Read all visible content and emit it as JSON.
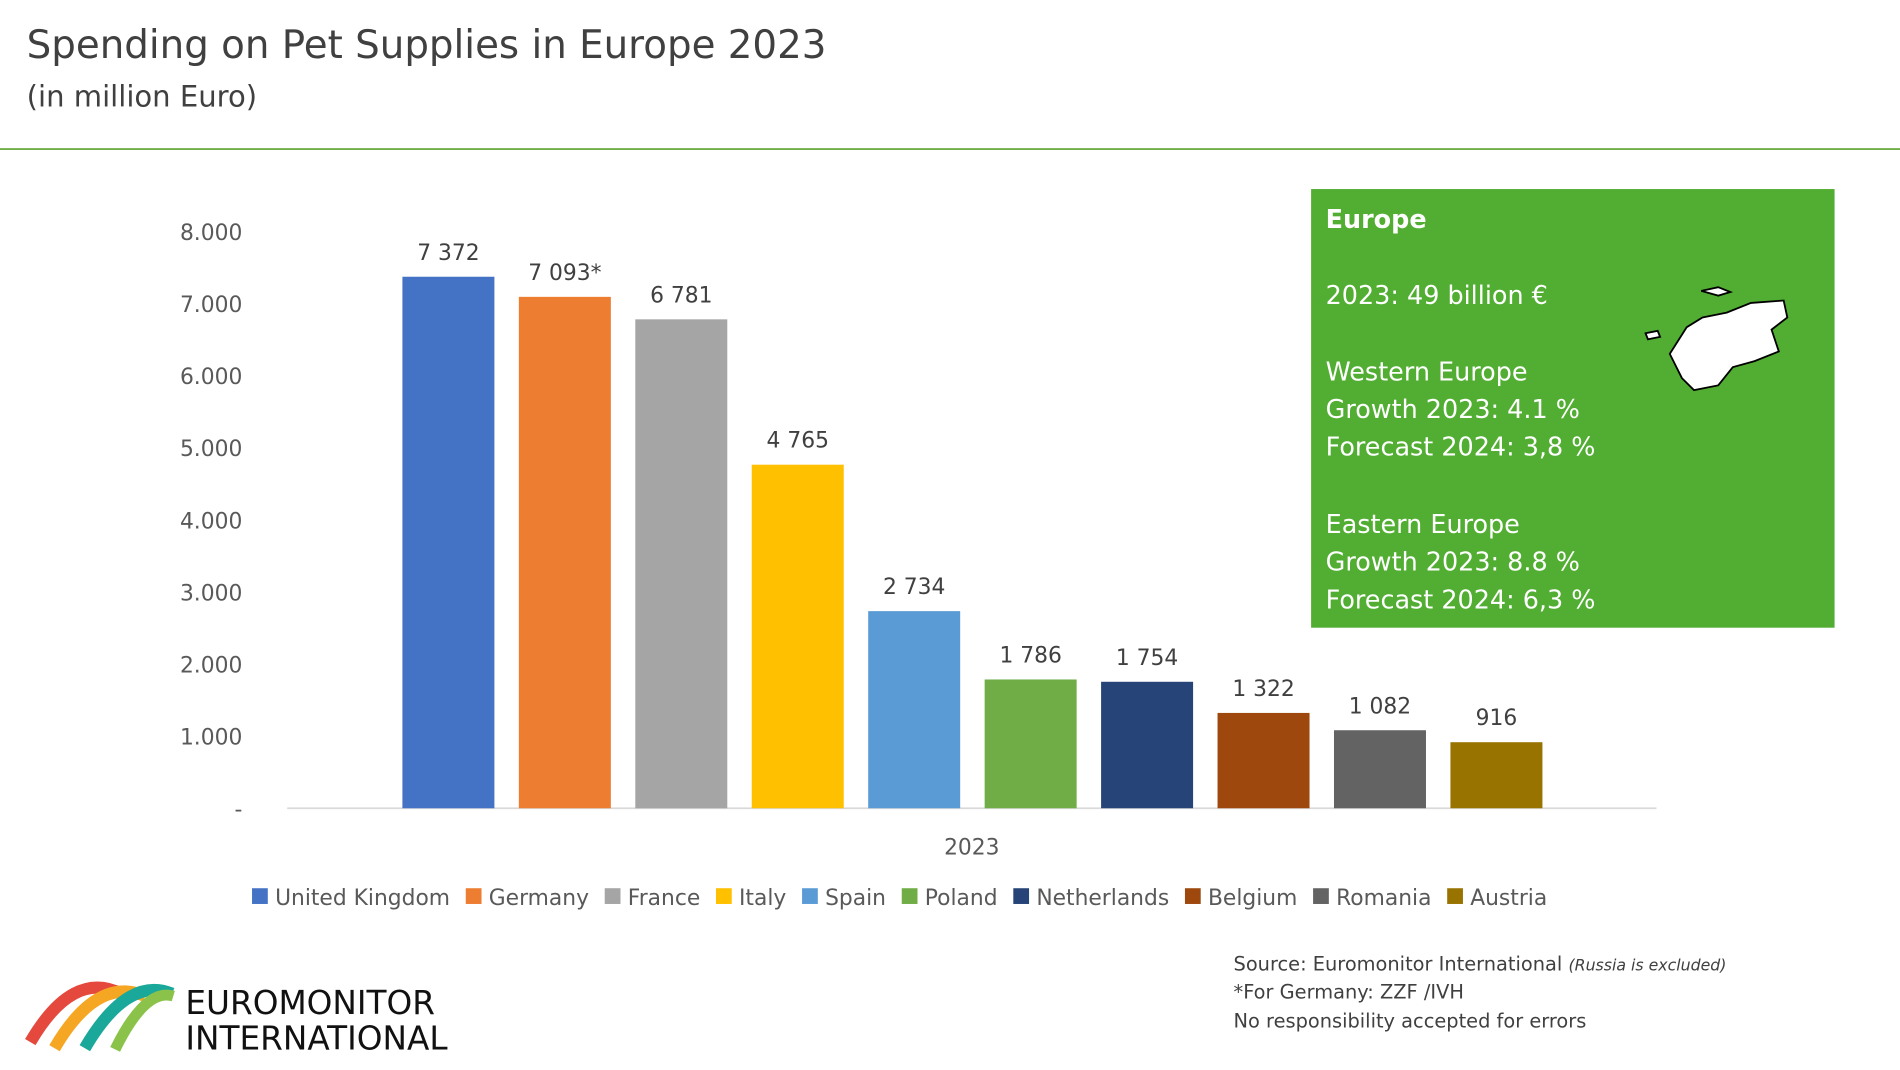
{
  "header": {
    "title": "Spending on Pet Supplies in Europe 2023",
    "subtitle": "(in million Euro)"
  },
  "chart_data": {
    "type": "bar",
    "categories": [
      "2023"
    ],
    "series": [
      {
        "name": "United Kingdom",
        "color": "#4472c4",
        "values": [
          7372
        ],
        "value_labels": [
          "7 372"
        ]
      },
      {
        "name": "Germany",
        "color": "#ed7d31",
        "values": [
          7093
        ],
        "value_labels": [
          "7 093*"
        ]
      },
      {
        "name": "France",
        "color": "#a5a5a5",
        "values": [
          6781
        ],
        "value_labels": [
          "6 781"
        ]
      },
      {
        "name": "Italy",
        "color": "#ffc000",
        "values": [
          4765
        ],
        "value_labels": [
          "4 765"
        ]
      },
      {
        "name": "Spain",
        "color": "#5b9bd5",
        "values": [
          2734
        ],
        "value_labels": [
          "2 734"
        ]
      },
      {
        "name": "Poland",
        "color": "#70ad47",
        "values": [
          1786
        ],
        "value_labels": [
          "1 786"
        ]
      },
      {
        "name": "Netherlands",
        "color": "#264478",
        "values": [
          1754
        ],
        "value_labels": [
          "1 754"
        ]
      },
      {
        "name": "Belgium",
        "color": "#9e480e",
        "values": [
          1322
        ],
        "value_labels": [
          "1 322"
        ]
      },
      {
        "name": "Romania",
        "color": "#636363",
        "values": [
          1082
        ],
        "value_labels": [
          "1 082"
        ]
      },
      {
        "name": "Austria",
        "color": "#997300",
        "values": [
          916
        ],
        "value_labels": [
          "916"
        ]
      }
    ],
    "ylim": [
      0,
      8000
    ],
    "yticks": [
      {
        "value": 0,
        "label": "-"
      },
      {
        "value": 1000,
        "label": "1.000"
      },
      {
        "value": 2000,
        "label": "2.000"
      },
      {
        "value": 3000,
        "label": "3.000"
      },
      {
        "value": 4000,
        "label": "4.000"
      },
      {
        "value": 5000,
        "label": "5.000"
      },
      {
        "value": 6000,
        "label": "6.000"
      },
      {
        "value": 7000,
        "label": "7.000"
      },
      {
        "value": 8000,
        "label": "8.000"
      }
    ],
    "grid": false,
    "legend": "bottom"
  },
  "info_box": {
    "title": "Europe",
    "total": "2023: 49 billion €",
    "western": [
      "Western Europe",
      "Growth 2023: 4.1 %",
      "Forecast 2024: 3,8 %"
    ],
    "eastern": [
      "Eastern Europe",
      "Growth 2023: 8.8 %",
      "Forecast 2024: 6,3 %"
    ]
  },
  "footer": {
    "source": "Source: Euromonitor International",
    "source_note": "(Russia is excluded)",
    "germany_note": "*For Germany: ZZF /IVH",
    "disclaimer": "No responsibility accepted for errors",
    "logo_line1": "EUROMONITOR",
    "logo_line2": "INTERNATIONAL"
  }
}
